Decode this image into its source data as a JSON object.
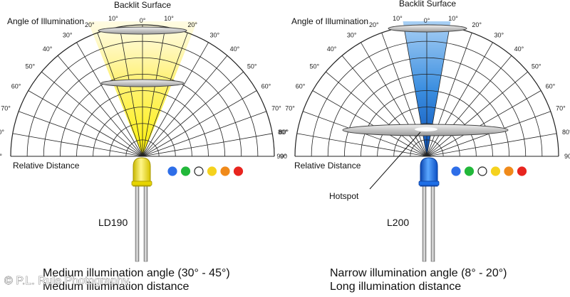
{
  "panels": [
    {
      "id": "ld190",
      "backlit_label": "Backlit Surface",
      "angle_label": "Angle of Illumination",
      "distance_label": "Relative Distance",
      "model": "LD190",
      "caption_line1": "Medium illumination angle (30° - 45°)",
      "caption_line2": "Medium illumination distance",
      "beam_color": "#ffee33",
      "led_color": "#f2e21a",
      "beam_half_angle_deg": 22,
      "left_angle_labels": [
        "0°",
        "10°",
        "20°",
        "30°",
        "40°",
        "50°",
        "60°",
        "70°",
        "80°",
        "90°"
      ],
      "right_angle_labels": [
        "10°",
        "20°",
        "30°",
        "40°",
        "50°",
        "60°",
        "70°",
        "80°",
        "90"
      ]
    },
    {
      "id": "l200",
      "backlit_label": "Backlit Surface",
      "angle_label": "Angle of Illumination",
      "distance_label": "Relative Distance",
      "hotspot_label": "Hotspot",
      "model": "L200",
      "caption_line1": "Narrow illumination angle (8° - 20°)",
      "caption_line2": "Long illumination distance",
      "beam_color": "#2a7fd6",
      "led_color": "#1a6fe0",
      "beam_half_angle_deg": 10,
      "left_angle_labels": [
        "0°",
        "10°",
        "20°",
        "30°",
        "40°",
        "50°",
        "60°",
        "70°",
        "80°",
        "90°"
      ],
      "right_angle_labels": [
        "10°",
        "20°",
        "30°",
        "40°",
        "50°",
        "60°",
        "70°",
        "80°",
        "90°"
      ]
    }
  ],
  "color_dots": [
    "#2e6ee8",
    "#22b83a",
    "#ffffff",
    "#f5d21e",
    "#f08a1a",
    "#e8251f"
  ],
  "watermark": "© P.L. Rule Photography"
}
